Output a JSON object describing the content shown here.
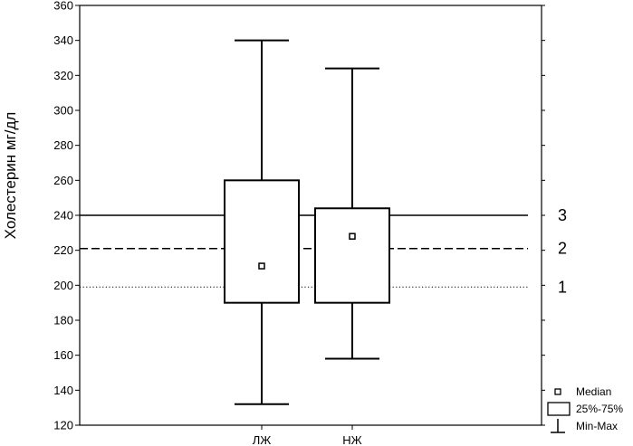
{
  "chart_data": {
    "type": "boxplot",
    "title": "",
    "xlabel": "",
    "ylabel": "Холестерин мг/дл",
    "ylim": [
      120,
      360
    ],
    "yticks": [
      120,
      140,
      160,
      180,
      200,
      220,
      240,
      260,
      280,
      300,
      320,
      340,
      360
    ],
    "ytick_labels": [
      "120",
      "140",
      "160",
      "180",
      "200",
      "220",
      "240",
      "260",
      "280",
      "300",
      "320",
      "340",
      "360"
    ],
    "grid": false,
    "categories": [
      "ЛЖ",
      "НЖ"
    ],
    "boxes": [
      {
        "category": "ЛЖ",
        "min": 132,
        "q1": 190,
        "median": 211,
        "q3": 260,
        "max": 340
      },
      {
        "category": "НЖ",
        "min": 158,
        "q1": 190,
        "median": 228,
        "q3": 244,
        "max": 324
      }
    ],
    "reference_lines": [
      {
        "label": "1",
        "value": 199,
        "style": "dotted"
      },
      {
        "label": "2",
        "value": 221,
        "style": "dashed"
      },
      {
        "label": "3",
        "value": 240,
        "style": "solid"
      }
    ],
    "legend": {
      "placement": "bottom-right",
      "items": [
        {
          "symbol": "square-point",
          "label": "Median"
        },
        {
          "symbol": "box",
          "label": "25%-75%"
        },
        {
          "symbol": "whisker",
          "label": "Min-Max"
        }
      ]
    }
  }
}
